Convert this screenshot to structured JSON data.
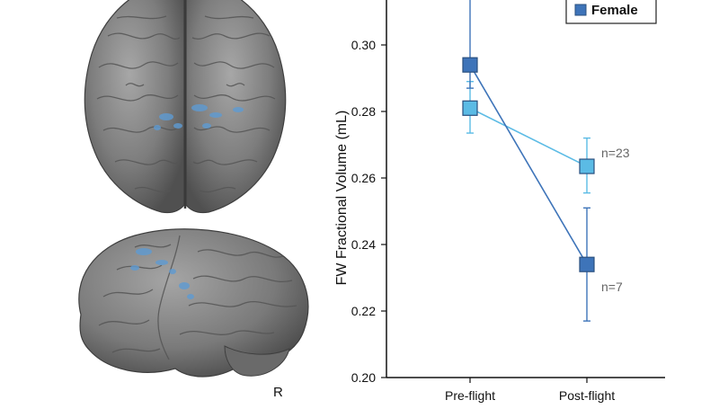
{
  "figure": {
    "brain_views": [
      {
        "name": "top-view",
        "label": ""
      },
      {
        "name": "lateral-view",
        "label": "R"
      }
    ],
    "highlight_color": "#5e9bd3"
  },
  "chart_data": {
    "type": "line",
    "categories": [
      "Pre-flight",
      "Post-flight"
    ],
    "title": "",
    "xlabel": "",
    "ylabel": "FW Fractional Volume (mL)",
    "ylim": [
      0.2,
      0.31
    ],
    "yticks": [
      "0.20",
      "0.22",
      "0.24",
      "0.26",
      "0.28",
      "0.30"
    ],
    "legend": {
      "position": "top-right",
      "visible_entries": [
        "Female"
      ]
    },
    "series": [
      {
        "name": "Female",
        "color": "#3e74b9",
        "values": [
          0.294,
          0.234
        ],
        "error_low": [
          0.287,
          0.217
        ],
        "error_high": [
          0.32,
          0.251
        ],
        "n_label": "n=7"
      },
      {
        "color": "#5bbbe5",
        "values": [
          0.281,
          0.2635
        ],
        "error_low": [
          0.2735,
          0.2555
        ],
        "error_high": [
          0.289,
          0.272
        ],
        "n_label": "n=23"
      }
    ]
  }
}
